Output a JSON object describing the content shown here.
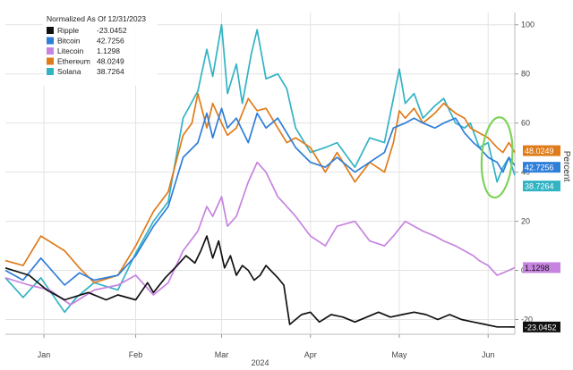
{
  "chart_data": {
    "type": "line",
    "title": "Normalized As Of 12/31/2023",
    "xlabel": "2024",
    "ylabel": "Percent",
    "x_range": [
      0,
      172
    ],
    "ylim": [
      -26,
      105
    ],
    "x_ticks": [
      {
        "label": "Jan",
        "x": 13
      },
      {
        "label": "Feb",
        "x": 44
      },
      {
        "label": "Mar",
        "x": 73
      },
      {
        "label": "Apr",
        "x": 103
      },
      {
        "label": "May",
        "x": 133
      },
      {
        "label": "Jun",
        "x": 163
      }
    ],
    "y_ticks": [
      -20,
      0,
      20,
      40,
      60,
      80,
      100
    ],
    "legend": [
      {
        "name": "Ripple",
        "value": "-23.0452"
      },
      {
        "name": "Bitcoin",
        "value": "42.7256"
      },
      {
        "name": "Litecoin",
        "value": "1.1298"
      },
      {
        "name": "Ethereum",
        "value": "48.0249"
      },
      {
        "name": "Solana",
        "value": "38.7264"
      }
    ],
    "series": [
      {
        "name": "Solana",
        "color": "#32b3c4",
        "last": 38.7264,
        "tag_offset": 12,
        "x": [
          0,
          6,
          12,
          20,
          24,
          30,
          38,
          44,
          50,
          55,
          60,
          65,
          68,
          70,
          73,
          75,
          78,
          80,
          83,
          85,
          88,
          92,
          95,
          98,
          103,
          108,
          112,
          118,
          123,
          128,
          131,
          133,
          135,
          138,
          141,
          145,
          148,
          152,
          155,
          157,
          160,
          163,
          166,
          168,
          170,
          172
        ],
        "y": [
          -3,
          -11,
          -3,
          -17,
          -11,
          -5,
          -8,
          7,
          20,
          28,
          62,
          73,
          90,
          79,
          100,
          72,
          84,
          68,
          88,
          98,
          78,
          80,
          74,
          58,
          48,
          50,
          52,
          42,
          54,
          52,
          70,
          82,
          68,
          72,
          62,
          67,
          70,
          60,
          58,
          60,
          50,
          52,
          36,
          42,
          46,
          38.7264
        ]
      },
      {
        "name": "Ethereum",
        "color": "#e07b1a",
        "last": 48.0249,
        "tag_offset": -2,
        "x": [
          0,
          6,
          12,
          20,
          25,
          30,
          38,
          44,
          50,
          55,
          60,
          63,
          65,
          68,
          70,
          73,
          75,
          78,
          82,
          85,
          88,
          92,
          95,
          98,
          103,
          108,
          112,
          118,
          123,
          128,
          131,
          133,
          135,
          138,
          141,
          145,
          148,
          152,
          155,
          157,
          160,
          163,
          166,
          168,
          170,
          172
        ],
        "y": [
          4,
          2,
          14,
          8,
          1,
          -5,
          -2,
          10,
          24,
          32,
          55,
          60,
          72,
          58,
          68,
          60,
          55,
          58,
          70,
          65,
          66,
          58,
          52,
          54,
          50,
          40,
          48,
          36,
          44,
          40,
          52,
          65,
          62,
          66,
          60,
          64,
          68,
          64,
          62,
          58,
          56,
          54,
          50,
          48,
          52,
          48.0249
        ]
      },
      {
        "name": "Bitcoin",
        "color": "#2f7ed8",
        "last": 42.7256,
        "tag_offset": 2,
        "x": [
          0,
          6,
          12,
          20,
          25,
          30,
          38,
          44,
          50,
          55,
          60,
          65,
          68,
          70,
          73,
          75,
          78,
          82,
          85,
          88,
          92,
          95,
          98,
          103,
          108,
          112,
          118,
          123,
          128,
          131,
          135,
          138,
          141,
          145,
          148,
          152,
          155,
          158,
          160,
          163,
          166,
          168,
          170,
          172
        ],
        "y": [
          0,
          -4,
          5,
          -6,
          -1,
          -4,
          -2,
          6,
          18,
          26,
          46,
          52,
          64,
          54,
          66,
          58,
          62,
          52,
          64,
          58,
          62,
          56,
          50,
          44,
          42,
          46,
          40,
          44,
          48,
          58,
          60,
          62,
          60,
          58,
          60,
          62,
          56,
          52,
          50,
          46,
          44,
          40,
          46,
          42.7256
        ]
      },
      {
        "name": "Litecoin",
        "color": "#c783e0",
        "last": 1.1298,
        "tag_offset": 0,
        "x": [
          0,
          8,
          15,
          22,
          30,
          38,
          44,
          50,
          55,
          60,
          65,
          68,
          70,
          73,
          75,
          78,
          82,
          85,
          88,
          92,
          95,
          98,
          103,
          108,
          112,
          118,
          123,
          128,
          131,
          135,
          138,
          141,
          145,
          148,
          152,
          155,
          158,
          160,
          163,
          166,
          168,
          170,
          172
        ],
        "y": [
          -3,
          -6,
          -8,
          -14,
          -8,
          -6,
          -2,
          -10,
          -5,
          8,
          16,
          26,
          22,
          30,
          18,
          22,
          36,
          44,
          40,
          30,
          26,
          22,
          14,
          10,
          18,
          20,
          12,
          10,
          14,
          20,
          18,
          16,
          14,
          12,
          10,
          8,
          6,
          4,
          2,
          -2,
          -1,
          0,
          1.1298
        ]
      },
      {
        "name": "Ripple",
        "color": "#111111",
        "last": -23.0452,
        "tag_offset": 0,
        "x": [
          0,
          8,
          14,
          20,
          28,
          34,
          38,
          44,
          48,
          50,
          54,
          58,
          61,
          64,
          66,
          68,
          70,
          72,
          74,
          76,
          78,
          80,
          82,
          84,
          86,
          88,
          92,
          94,
          96,
          98,
          100,
          103,
          106,
          110,
          114,
          118,
          122,
          126,
          130,
          134,
          138,
          142,
          146,
          150,
          154,
          158,
          162,
          166,
          170,
          172
        ],
        "y": [
          1,
          -2,
          -8,
          -12,
          -9,
          -12,
          -10,
          -12,
          -5,
          -9,
          -3,
          2,
          6,
          3,
          8,
          14,
          5,
          12,
          1,
          6,
          -2,
          2,
          0,
          -4,
          -2,
          2,
          -3,
          -6,
          -22,
          -20,
          -18,
          -17,
          -21,
          -18,
          -19,
          -21,
          -19,
          -17,
          -19,
          -18,
          -17,
          -18,
          -20,
          -18,
          -20,
          -21,
          -22,
          -23,
          -23,
          -23.0452
        ]
      }
    ]
  }
}
